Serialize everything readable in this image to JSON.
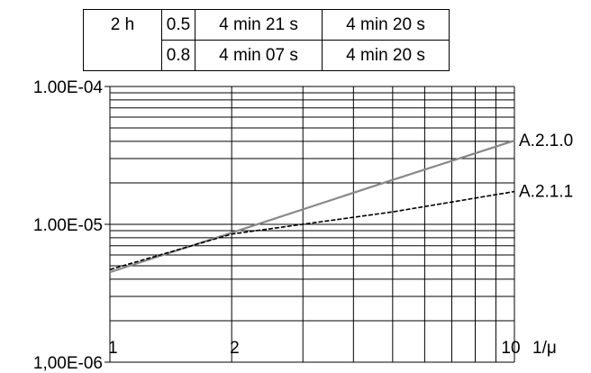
{
  "table": {
    "rows": [
      [
        "2 h",
        "0.5",
        "4 min 21 s",
        "4 min 20 s"
      ],
      [
        "",
        "0.8",
        "4 min 07 s",
        "4 min 20 s"
      ]
    ]
  },
  "chart_data": {
    "type": "line",
    "title": "",
    "xlabel": "1/μ",
    "ylabel": "",
    "x_scale": "log",
    "y_scale": "log",
    "xlim": [
      1,
      10
    ],
    "ylim": [
      1e-06,
      0.0001
    ],
    "grid": true,
    "x_tick_labels": [
      {
        "value": 1,
        "label": "1"
      },
      {
        "value": 2,
        "label": "2"
      },
      {
        "value": 10,
        "label": "10"
      }
    ],
    "y_tick_labels": [
      {
        "value": 0.0001,
        "label": "1.00E-04"
      },
      {
        "value": 1e-05,
        "label": "1.00E-05"
      },
      {
        "value": 1e-06,
        "label": "1,00E-06"
      }
    ],
    "series": [
      {
        "name": "A.2.1.0",
        "color": "#888888",
        "style": "solid",
        "x": [
          1,
          2,
          5,
          10
        ],
        "y": [
          4.5e-06,
          8.7e-06,
          2.1e-05,
          4.05e-05
        ]
      },
      {
        "name": "A.2.1.1",
        "color": "#000000",
        "style": "dashed",
        "x": [
          1,
          2,
          5,
          10
        ],
        "y": [
          4.7e-06,
          8.5e-06,
          1.23e-05,
          1.73e-05
        ]
      }
    ]
  }
}
